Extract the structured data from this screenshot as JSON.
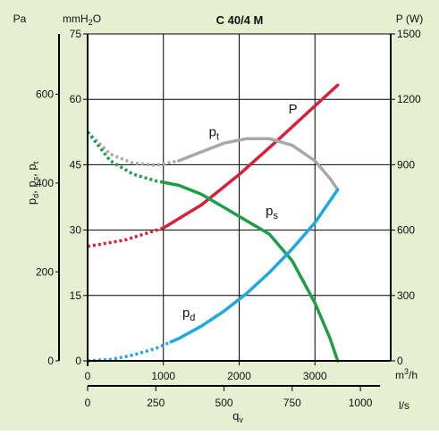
{
  "chart_data": {
    "type": "line",
    "title": "C 40/4 M",
    "background": "#e6efd2",
    "plot_background": "#ffffff",
    "axes": {
      "left_outer": {
        "unit": "Pa",
        "ticks": [
          0,
          200,
          400,
          600
        ],
        "range": [
          0,
          735.5
        ]
      },
      "left_inner": {
        "unit_main": "mmH",
        "unit_sub": "2",
        "unit_tail": "O",
        "ticks": [
          0,
          15,
          30,
          45,
          60,
          75
        ],
        "range": [
          0,
          75
        ]
      },
      "right": {
        "unit": "P (W)",
        "ticks": [
          0,
          300,
          600,
          900,
          1200,
          1500
        ],
        "range": [
          0,
          1500
        ]
      },
      "x_top": {
        "unit_main": "m",
        "unit_sup": "3",
        "unit_tail": "/h",
        "ticks": [
          0,
          1000,
          2000,
          3000
        ],
        "range": [
          0,
          4000
        ]
      },
      "x_bottom": {
        "unit": "l/s",
        "ticks": [
          0,
          250,
          500,
          750,
          1000
        ],
        "range": [
          0,
          1111.1
        ]
      },
      "ylabel": {
        "p": "p",
        "d": "d",
        "s": "s",
        "t": "t",
        "sep": ", "
      },
      "xlabel": {
        "main": "q",
        "sub": "v"
      }
    },
    "grid": true,
    "series": [
      {
        "name": "P",
        "color": "#d8203a",
        "label": {
          "main": "P",
          "sub": "",
          "at": [
            2650,
            1135
          ]
        },
        "dashed_until": 1000,
        "points_x": [
          0,
          500,
          1000,
          1500,
          2000,
          2500,
          3000,
          3300
        ],
        "points_y": [
          525,
          555,
          610,
          715,
          855,
          1010,
          1170,
          1265
        ]
      },
      {
        "name": "pt",
        "color": "#a8a8a8",
        "label": {
          "main": "p",
          "sub": "t",
          "at": [
            1600,
            505
          ]
        },
        "dashed_until": 1200,
        "points_x": [
          0,
          300,
          600,
          900,
          1200,
          1500,
          1800,
          2100,
          2400,
          2700,
          3000,
          3200,
          3300
        ],
        "points_y": [
          515,
          465,
          445,
          440,
          450,
          470,
          490,
          500,
          500,
          485,
          450,
          410,
          385
        ]
      },
      {
        "name": "ps",
        "color": "#1e9e47",
        "label": {
          "main": "p",
          "sub": "s",
          "at": [
            2350,
            328
          ]
        },
        "dashed_until": 1000,
        "points_x": [
          0,
          300,
          600,
          900,
          1200,
          1500,
          1800,
          2100,
          2400,
          2700,
          3000,
          3200,
          3300
        ],
        "points_y": [
          515,
          450,
          420,
          405,
          395,
          375,
          345,
          315,
          285,
          225,
          130,
          50,
          0
        ]
      },
      {
        "name": "pd",
        "color": "#1ea8df",
        "label": {
          "main": "p",
          "sub": "d",
          "at": [
            1250,
            98
          ]
        },
        "dashed_until": 1100,
        "points_x": [
          0,
          300,
          600,
          900,
          1200,
          1500,
          1800,
          2100,
          2400,
          2700,
          3000,
          3300
        ],
        "points_y": [
          0,
          3,
          13,
          28,
          50,
          78,
          112,
          152,
          199,
          252,
          311,
          385
        ]
      }
    ]
  }
}
